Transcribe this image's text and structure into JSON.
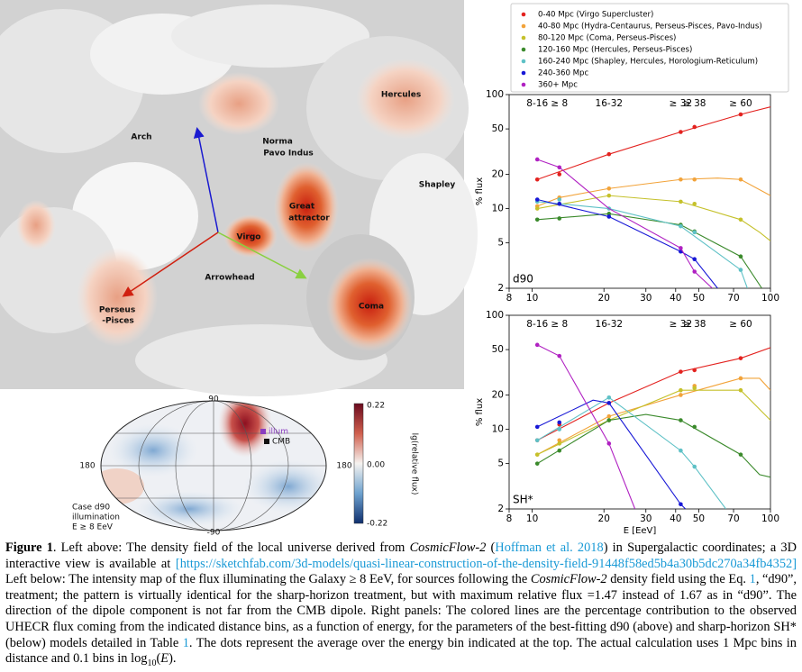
{
  "render": {
    "labels": [
      "Arch",
      "Norma",
      "Pavo Indus",
      "Hercules",
      "Shapley",
      "Great",
      "attractor",
      "Virgo",
      "Arrowhead",
      "Perseus",
      "-Pisces",
      "Coma"
    ]
  },
  "sky_map": {
    "lat_top": "90",
    "lat_bottom": "-90",
    "lon_left": "180",
    "lon_right": "180",
    "center": "0.00",
    "colorbar_ticks": [
      "0.22",
      "0.00",
      "-0.22"
    ],
    "colorbar_label": "lg(relative flux)",
    "markers": [
      "illum",
      "CMB"
    ],
    "case_text": [
      "Case d90",
      "illumination",
      "E ≥ 8 EeV"
    ]
  },
  "chart_data": [
    {
      "type": "line",
      "panel_label": "d90",
      "ylabel": "% flux",
      "log_x": true,
      "log_y": true,
      "xlim": [
        8,
        100
      ],
      "ylim": [
        2,
        100
      ],
      "xticks": [
        8,
        10,
        20,
        30,
        40,
        50,
        70,
        100
      ],
      "yticks": [
        2,
        5,
        10,
        20,
        50,
        100
      ],
      "bin_x": [
        10.5,
        13,
        21,
        42,
        48,
        75
      ],
      "bin_labels": [
        "8-16",
        "≥ 8",
        "16-32",
        "≥ 32",
        "≥ 38",
        "≥ 60"
      ],
      "series": [
        {
          "name": "0-40 Mpc (Virgo Supercluster)",
          "color": "#e3221f",
          "x": [
            10.5,
            21,
            42,
            75,
            100
          ],
          "values": [
            18,
            30,
            47,
            67,
            78
          ],
          "dots": [
            18,
            20,
            30,
            47,
            52,
            67
          ]
        },
        {
          "name": "40-80 Mpc (Hydra-Centaurus, Perseus-Pisces, Pavo-Indus)",
          "color": "#f2a33a",
          "x": [
            10.5,
            13,
            21,
            42,
            60,
            75,
            100
          ],
          "values": [
            10.5,
            12.5,
            15,
            18,
            18.5,
            18,
            13
          ],
          "dots": [
            10.5,
            12.5,
            15,
            18,
            18,
            18
          ]
        },
        {
          "name": "80-120 Mpc (Coma, Perseus-Pisces)",
          "color": "#c5c12b",
          "x": [
            10.5,
            21,
            42,
            75,
            90,
            100
          ],
          "values": [
            10,
            13,
            11.5,
            8,
            6.2,
            5.2
          ],
          "dots": [
            10,
            11,
            13,
            11.5,
            11,
            8
          ]
        },
        {
          "name": "120-160 Mpc (Hercules, Perseus-Pisces)",
          "color": "#3b8a2c",
          "x": [
            10.5,
            21,
            42,
            75,
            92
          ],
          "values": [
            8,
            9,
            7.2,
            3.8,
            2
          ],
          "dots": [
            8,
            8.2,
            9,
            7.2,
            6.3,
            3.8
          ]
        },
        {
          "name": "160-240 Mpc (Shapley, Hercules, Horologium-Reticulum)",
          "color": "#5ec1c6",
          "x": [
            10.5,
            21,
            42,
            75,
            80
          ],
          "values": [
            11.5,
            10,
            7,
            2.9,
            2
          ],
          "dots": [
            11.5,
            12,
            10,
            7,
            6.2,
            2.9
          ]
        },
        {
          "name": "240-360 Mpc",
          "color": "#1717d6",
          "x": [
            10.5,
            21,
            42,
            48,
            60
          ],
          "values": [
            12,
            8.5,
            4.2,
            3.6,
            2
          ],
          "dots": [
            12,
            11,
            8.5,
            4.2,
            3.6,
            null
          ]
        },
        {
          "name": "360+ Mpc",
          "color": "#b021c2",
          "x": [
            10.5,
            13,
            21,
            42,
            48,
            57
          ],
          "values": [
            27,
            23,
            10,
            4.5,
            2.8,
            2
          ],
          "dots": [
            27,
            23,
            null,
            4.5,
            2.8,
            null
          ]
        }
      ]
    },
    {
      "type": "line",
      "panel_label": "SH*",
      "ylabel": "% flux",
      "xlabel": "E [EeV]",
      "log_x": true,
      "log_y": true,
      "xlim": [
        8,
        100
      ],
      "ylim": [
        2,
        100
      ],
      "xticks": [
        8,
        10,
        20,
        30,
        40,
        50,
        70,
        100
      ],
      "yticks": [
        2,
        5,
        10,
        20,
        50,
        100
      ],
      "bin_x": [
        10.5,
        13,
        21,
        42,
        48,
        75
      ],
      "bin_labels": [
        "8-16",
        "≥ 8",
        "16-32",
        "≥ 32",
        "≥ 38",
        "≥ 60"
      ],
      "series": [
        {
          "color": "#e3221f",
          "x": [
            10.5,
            21,
            42,
            75,
            100
          ],
          "values": [
            8,
            17,
            32,
            42,
            52
          ],
          "dots": [
            8,
            11,
            17,
            32,
            33,
            42
          ]
        },
        {
          "color": "#f2a33a",
          "x": [
            10.5,
            21,
            42,
            75,
            90,
            100
          ],
          "values": [
            6,
            13,
            20,
            28,
            28,
            22
          ],
          "dots": [
            6,
            8,
            13,
            20,
            24,
            28
          ]
        },
        {
          "color": "#c5c12b",
          "x": [
            10.5,
            21,
            42,
            75,
            100
          ],
          "values": [
            6,
            12,
            22,
            22,
            12
          ],
          "dots": [
            6,
            7.5,
            12,
            22,
            23,
            22
          ]
        },
        {
          "color": "#3b8a2c",
          "x": [
            10.5,
            21,
            30,
            42,
            75,
            90,
            100
          ],
          "values": [
            5,
            12,
            13.5,
            12,
            6,
            4,
            3.8
          ],
          "dots": [
            5,
            6.5,
            12,
            12,
            10.5,
            6
          ]
        },
        {
          "color": "#5ec1c6",
          "x": [
            10.5,
            21,
            42,
            48,
            65
          ],
          "values": [
            8,
            19,
            6.5,
            4.7,
            2
          ],
          "dots": [
            8,
            10,
            19,
            6.5,
            4.7,
            null
          ]
        },
        {
          "color": "#1717d6",
          "x": [
            10.5,
            18,
            21,
            42,
            44
          ],
          "values": [
            10.5,
            18,
            17,
            2.2,
            2
          ],
          "dots": [
            10.5,
            11.5,
            17,
            2.2,
            null,
            null
          ]
        },
        {
          "color": "#b021c2",
          "x": [
            10.5,
            13,
            21,
            27
          ],
          "values": [
            55,
            44,
            7.5,
            2
          ],
          "dots": [
            55,
            44,
            7.5,
            null,
            null,
            null
          ]
        }
      ]
    }
  ],
  "caption": [
    {
      "text": "Figure 1",
      "style": "bold"
    },
    {
      "text": ".     Left above:  The density field of the local universe derived from ",
      "style": "plain"
    },
    {
      "text": "CosmicFlow-2",
      "style": "italic"
    },
    {
      "text": " (",
      "style": "plain"
    },
    {
      "text": "Hoffman et al. 2018",
      "style": "link"
    },
    {
      "text": ") in Supergalactic coordinates; a 3D interactive view is available at ",
      "style": "plain"
    },
    {
      "text": "[https://sketchfab.com/3d-models/quasi-linear-construction-of-the-density-field-91448f58ed5b4a30b5dc270a34fb4352]",
      "style": "link"
    },
    {
      "text": " Left below: The intensity map of the flux illuminating the Galaxy ≥ 8 EeV, for sources following the ",
      "style": "plain"
    },
    {
      "text": "CosmicFlow-2",
      "style": "italic"
    },
    {
      "text": " density field using the Eq. ",
      "style": "plain"
    },
    {
      "text": "1",
      "style": "link"
    },
    {
      "text": ", “d90”, treatment; the pattern is virtually identical for the sharp-horizon treatment, but with maximum relative flux =1.47 instead of 1.67 as in “d90”. The direction of the dipole component is not far from the CMB dipole. Right panels: The colored lines are the percentage contribution to the observed UHECR flux coming from the indicated distance bins, as a function of energy, for the parameters of the best-fitting d90 (above) and sharp-horizon SH* (below) models detailed in Table ",
      "style": "plain"
    },
    {
      "text": "1",
      "style": "link"
    },
    {
      "text": ". The dots represent the average over the energy bin indicated at the top. The actual calculation uses 1 Mpc bins in distance and 0.1 bins in log",
      "style": "plain"
    },
    {
      "text": "10",
      "style": "sub"
    },
    {
      "text": "(",
      "style": "plain"
    },
    {
      "text": "E",
      "style": "italic"
    },
    {
      "text": ").",
      "style": "plain"
    }
  ]
}
